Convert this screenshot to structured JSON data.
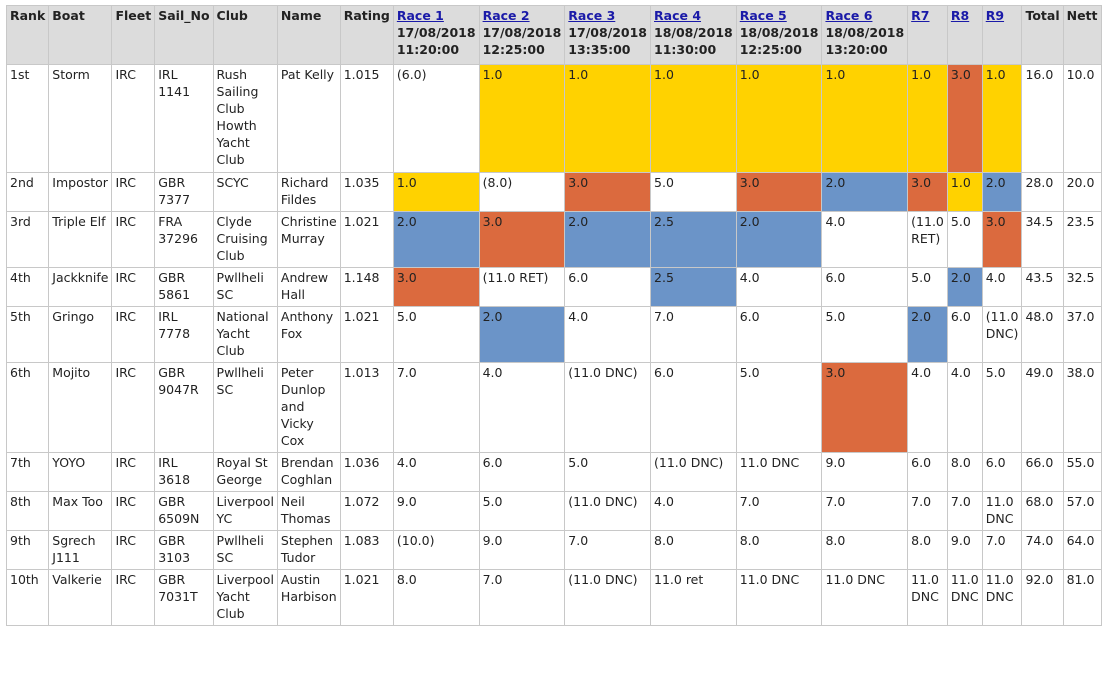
{
  "columns": [
    {
      "key": "rank",
      "label": "Rank"
    },
    {
      "key": "boat",
      "label": "Boat"
    },
    {
      "key": "fleet",
      "label": "Fleet"
    },
    {
      "key": "sail",
      "label": "Sail_No"
    },
    {
      "key": "club",
      "label": "Club"
    },
    {
      "key": "name",
      "label": "Name"
    },
    {
      "key": "rating",
      "label": "Rating"
    },
    {
      "key": "r1",
      "label": "Race 1",
      "date": "17/08/2018 11:20:00",
      "link": true
    },
    {
      "key": "r2",
      "label": "Race 2",
      "date": "17/08/2018 12:25:00",
      "link": true
    },
    {
      "key": "r3",
      "label": "Race 3",
      "date": "17/08/2018 13:35:00",
      "link": true
    },
    {
      "key": "r4",
      "label": "Race 4",
      "date": "18/08/2018 11:30:00",
      "link": true
    },
    {
      "key": "r5",
      "label": "Race 5",
      "date": "18/08/2018 12:25:00",
      "link": true
    },
    {
      "key": "r6",
      "label": "Race 6",
      "date": "18/08/2018 13:20:00",
      "link": true
    },
    {
      "key": "r7",
      "label": "R7",
      "link": true
    },
    {
      "key": "r8",
      "label": "R8",
      "link": true
    },
    {
      "key": "r9",
      "label": "R9",
      "link": true
    },
    {
      "key": "total",
      "label": "Total"
    },
    {
      "key": "nett",
      "label": "Nett"
    }
  ],
  "colors": {
    "gold": "#ffd200",
    "red": "#db6a3e",
    "blue": "#6b94c8"
  },
  "rows": [
    {
      "rank": "1st",
      "boat": "Storm",
      "fleet": "IRC",
      "sail": "IRL 1141",
      "club": "Rush Sailing Club Howth Yacht Club",
      "name": "Pat Kelly",
      "rating": "1.015",
      "scores": [
        "(6.0)",
        "1.0",
        "1.0",
        "1.0",
        "1.0",
        "1.0",
        "1.0",
        "3.0",
        "1.0"
      ],
      "highlights": [
        "",
        "gold",
        "gold",
        "gold",
        "gold",
        "gold",
        "gold",
        "red",
        "gold"
      ],
      "total": "16.0",
      "nett": "10.0"
    },
    {
      "rank": "2nd",
      "boat": "Impostor",
      "fleet": "IRC",
      "sail": "GBR 7377",
      "club": "SCYC",
      "name": "Richard Fildes",
      "rating": "1.035",
      "scores": [
        "1.0",
        "(8.0)",
        "3.0",
        "5.0",
        "3.0",
        "2.0",
        "3.0",
        "1.0",
        "2.0"
      ],
      "highlights": [
        "gold",
        "",
        "red",
        "",
        "red",
        "blue",
        "red",
        "gold",
        "blue"
      ],
      "total": "28.0",
      "nett": "20.0"
    },
    {
      "rank": "3rd",
      "boat": "Triple Elf",
      "fleet": "IRC",
      "sail": "FRA 37296",
      "club": "Clyde Cruising Club",
      "name": "Christine Murray",
      "rating": "1.021",
      "scores": [
        "2.0",
        "3.0",
        "2.0",
        "2.5",
        "2.0",
        "4.0",
        "(11.0 RET)",
        "5.0",
        "3.0"
      ],
      "highlights": [
        "blue",
        "red",
        "blue",
        "blue",
        "blue",
        "",
        "",
        "",
        "red"
      ],
      "total": "34.5",
      "nett": "23.5"
    },
    {
      "rank": "4th",
      "boat": "Jackknife",
      "fleet": "IRC",
      "sail": "GBR 5861",
      "club": "Pwllheli SC",
      "name": "Andrew Hall",
      "rating": "1.148",
      "scores": [
        "3.0",
        "(11.0 RET)",
        "6.0",
        "2.5",
        "4.0",
        "6.0",
        "5.0",
        "2.0",
        "4.0"
      ],
      "highlights": [
        "red",
        "",
        "",
        "blue",
        "",
        "",
        "",
        "blue",
        ""
      ],
      "total": "43.5",
      "nett": "32.5"
    },
    {
      "rank": "5th",
      "boat": "Gringo",
      "fleet": "IRC",
      "sail": "IRL 7778",
      "club": "National Yacht Club",
      "name": "Anthony Fox",
      "rating": "1.021",
      "scores": [
        "5.0",
        "2.0",
        "4.0",
        "7.0",
        "6.0",
        "5.0",
        "2.0",
        "6.0",
        "(11.0 DNC)"
      ],
      "highlights": [
        "",
        "blue",
        "",
        "",
        "",
        "",
        "blue",
        "",
        ""
      ],
      "total": "48.0",
      "nett": "37.0"
    },
    {
      "rank": "6th",
      "boat": "Mojito",
      "fleet": "IRC",
      "sail": "GBR 9047R",
      "club": "Pwllheli SC",
      "name": "Peter Dunlop and Vicky Cox",
      "rating": "1.013",
      "scores": [
        "7.0",
        "4.0",
        "(11.0 DNC)",
        "6.0",
        "5.0",
        "3.0",
        "4.0",
        "4.0",
        "5.0"
      ],
      "highlights": [
        "",
        "",
        "",
        "",
        "",
        "red",
        "",
        "",
        ""
      ],
      "total": "49.0",
      "nett": "38.0"
    },
    {
      "rank": "7th",
      "boat": "YOYO",
      "fleet": "IRC",
      "sail": "IRL 3618",
      "club": "Royal St George",
      "name": "Brendan Coghlan",
      "rating": "1.036",
      "scores": [
        "4.0",
        "6.0",
        "5.0",
        "(11.0 DNC)",
        "11.0 DNC",
        "9.0",
        "6.0",
        "8.0",
        "6.0"
      ],
      "highlights": [
        "",
        "",
        "",
        "",
        "",
        "",
        "",
        "",
        ""
      ],
      "total": "66.0",
      "nett": "55.0"
    },
    {
      "rank": "8th",
      "boat": "Max Too",
      "fleet": "IRC",
      "sail": "GBR 6509N",
      "club": "Liverpool YC",
      "name": "Neil Thomas",
      "rating": "1.072",
      "scores": [
        "9.0",
        "5.0",
        "(11.0 DNC)",
        "4.0",
        "7.0",
        "7.0",
        "7.0",
        "7.0",
        "11.0 DNC"
      ],
      "highlights": [
        "",
        "",
        "",
        "",
        "",
        "",
        "",
        "",
        ""
      ],
      "total": "68.0",
      "nett": "57.0"
    },
    {
      "rank": "9th",
      "boat": "Sgrech J111",
      "fleet": "IRC",
      "sail": "GBR 3103",
      "club": "Pwllheli SC",
      "name": "Stephen Tudor",
      "rating": "1.083",
      "scores": [
        "(10.0)",
        "9.0",
        "7.0",
        "8.0",
        "8.0",
        "8.0",
        "8.0",
        "9.0",
        "7.0"
      ],
      "highlights": [
        "",
        "",
        "",
        "",
        "",
        "",
        "",
        "",
        ""
      ],
      "total": "74.0",
      "nett": "64.0"
    },
    {
      "rank": "10th",
      "boat": "Valkerie",
      "fleet": "IRC",
      "sail": "GBR 7031T",
      "club": "Liverpool Yacht Club",
      "name": "Austin Harbison",
      "rating": "1.021",
      "scores": [
        "8.0",
        "7.0",
        "(11.0 DNC)",
        "11.0 ret",
        "11.0 DNC",
        "11.0 DNC",
        "11.0 DNC",
        "11.0 DNC",
        "11.0 DNC"
      ],
      "highlights": [
        "",
        "",
        "",
        "",
        "",
        "",
        "",
        "",
        ""
      ],
      "total": "92.0",
      "nett": "81.0"
    }
  ]
}
